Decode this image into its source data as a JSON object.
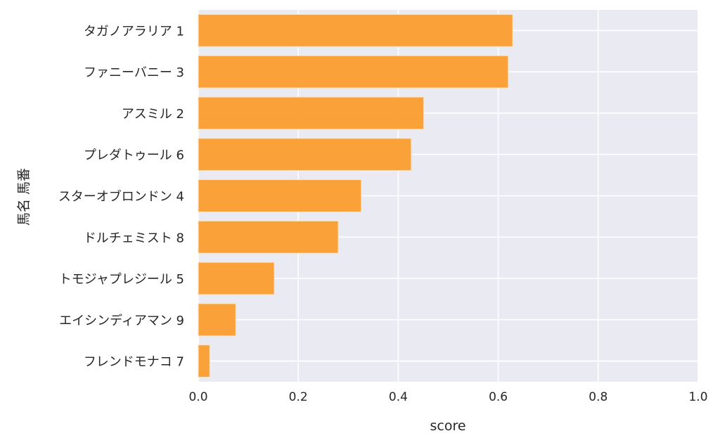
{
  "chart_data": {
    "type": "bar",
    "orientation": "horizontal",
    "title": "",
    "xlabel": "score",
    "ylabel": "馬名 馬番",
    "xlim": [
      0,
      1.0
    ],
    "xticks": [
      "0.0",
      "0.2",
      "0.4",
      "0.6",
      "0.8",
      "1.0"
    ],
    "grid": true,
    "categories": [
      "タガノアラリア 1",
      "ファニーバニー 3",
      "アスミル 2",
      "プレダトゥール 6",
      "スターオブロンドン 4",
      "ドルチェミスト 8",
      "トモジャプレジール 5",
      "エイシンディアマン 9",
      "フレンドモナコ 7"
    ],
    "values": [
      0.629,
      0.62,
      0.451,
      0.426,
      0.326,
      0.28,
      0.152,
      0.075,
      0.023
    ],
    "colors": {
      "bar": "#fb9a29",
      "background": "#eaeaf2",
      "grid": "#ffffff"
    }
  }
}
